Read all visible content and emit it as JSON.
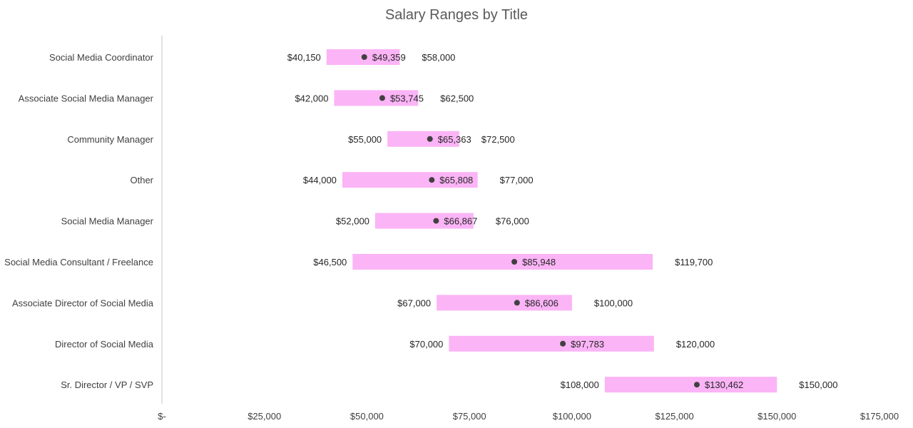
{
  "chart_data": {
    "type": "bar",
    "title": "Salary Ranges by Title",
    "xlabel": "",
    "ylabel": "",
    "xlim": [
      0,
      175000
    ],
    "x_ticks": [
      0,
      25000,
      50000,
      75000,
      100000,
      125000,
      150000,
      175000
    ],
    "x_tick_labels": [
      "$-",
      "$25,000",
      "$50,000",
      "$75,000",
      "$100,000",
      "$125,000",
      "$150,000",
      "$175,000"
    ],
    "grid": false,
    "legend": "none",
    "bar_color": "#fbb4f6",
    "marker_color": "#404040",
    "categories": [
      "Social Media Coordinator",
      "Associate Social Media Manager",
      "Community Manager",
      "Other",
      "Social Media Manager",
      "Social Media Consultant / Freelance",
      "Associate Director of Social Media",
      "Director of Social Media",
      "Sr. Director / VP / SVP"
    ],
    "series": [
      {
        "name": "",
        "role": "min",
        "values": [
          40150,
          42000,
          55000,
          44000,
          52000,
          46500,
          67000,
          70000,
          108000
        ],
        "labels": [
          "$40,150",
          "$42,000",
          "$55,000",
          "$44,000",
          "$52,000",
          "$46,500",
          "$67,000",
          "$70,000",
          "$108,000"
        ]
      },
      {
        "name": "",
        "role": "max",
        "values": [
          58000,
          62500,
          72500,
          77000,
          76000,
          119700,
          100000,
          120000,
          150000
        ],
        "labels": [
          "$58,000",
          "$62,500",
          "$72,500",
          "$77,000",
          "$76,000",
          "$119,700",
          "$100,000",
          "$120,000",
          "$150,000"
        ]
      },
      {
        "name": "",
        "role": "average",
        "values": [
          49359,
          53745,
          65363,
          65808,
          66867,
          85948,
          86606,
          97783,
          130462
        ],
        "labels": [
          "$49,359",
          "$53,745",
          "$65,363",
          "$65,808",
          "$66,867",
          "$85,948",
          "$86,606",
          "$97,783",
          "$130,462"
        ]
      }
    ]
  }
}
